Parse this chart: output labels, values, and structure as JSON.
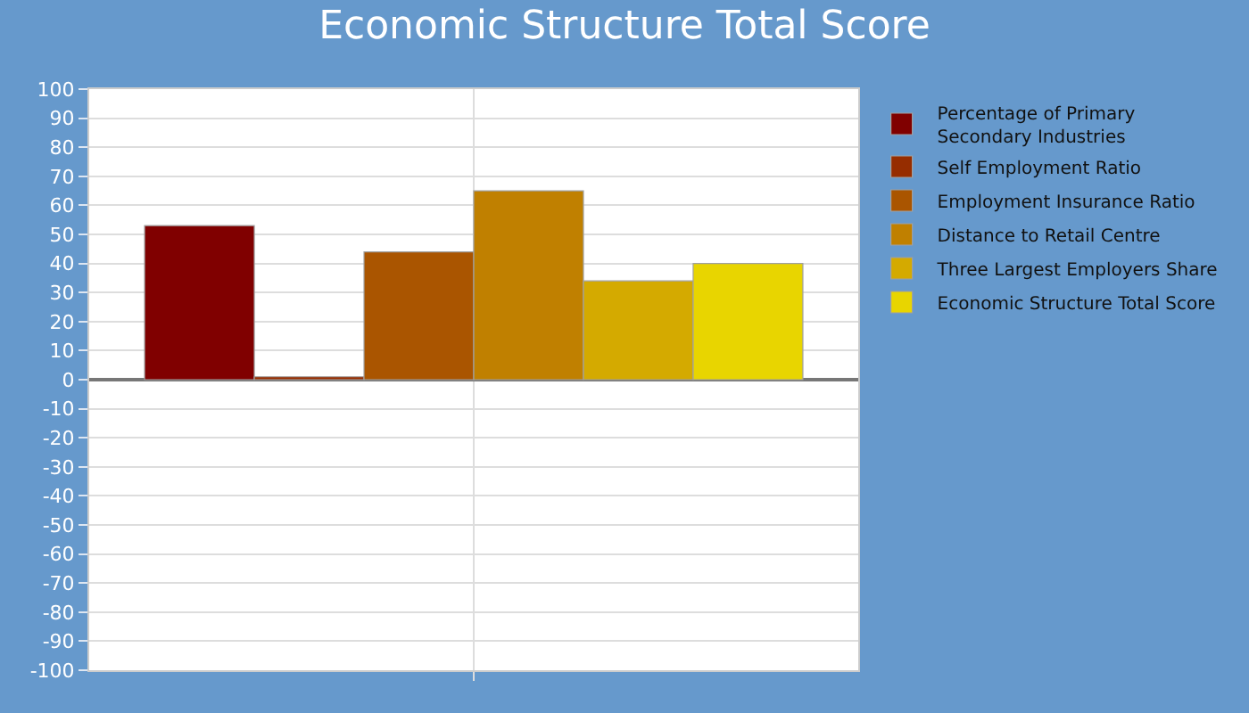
{
  "chart_data": {
    "type": "bar",
    "title": "Economic Structure Total Score",
    "categories": [
      null
    ],
    "series": [
      {
        "name": "Percentage of Primary Secondary Industries",
        "color": "#800000",
        "values": [
          53
        ]
      },
      {
        "name": "Self Employment Ratio",
        "color": "#962d00",
        "values": [
          1
        ]
      },
      {
        "name": "Employment Insurance Ratio",
        "color": "#aa5500",
        "values": [
          44
        ]
      },
      {
        "name": "Distance to Retail Centre",
        "color": "#c08000",
        "values": [
          65
        ]
      },
      {
        "name": "Three Largest Employers Share",
        "color": "#d4aa00",
        "values": [
          34
        ]
      },
      {
        "name": "Economic Structure Total Score",
        "color": "#e8d500",
        "values": [
          40
        ]
      }
    ],
    "ylim": [
      -100,
      100
    ],
    "yticks": [
      -100,
      -90,
      -80,
      -70,
      -60,
      -50,
      -40,
      -30,
      -20,
      -10,
      0,
      10,
      20,
      30,
      40,
      50,
      60,
      70,
      80,
      90,
      100
    ],
    "grid": true,
    "legend": "right"
  }
}
